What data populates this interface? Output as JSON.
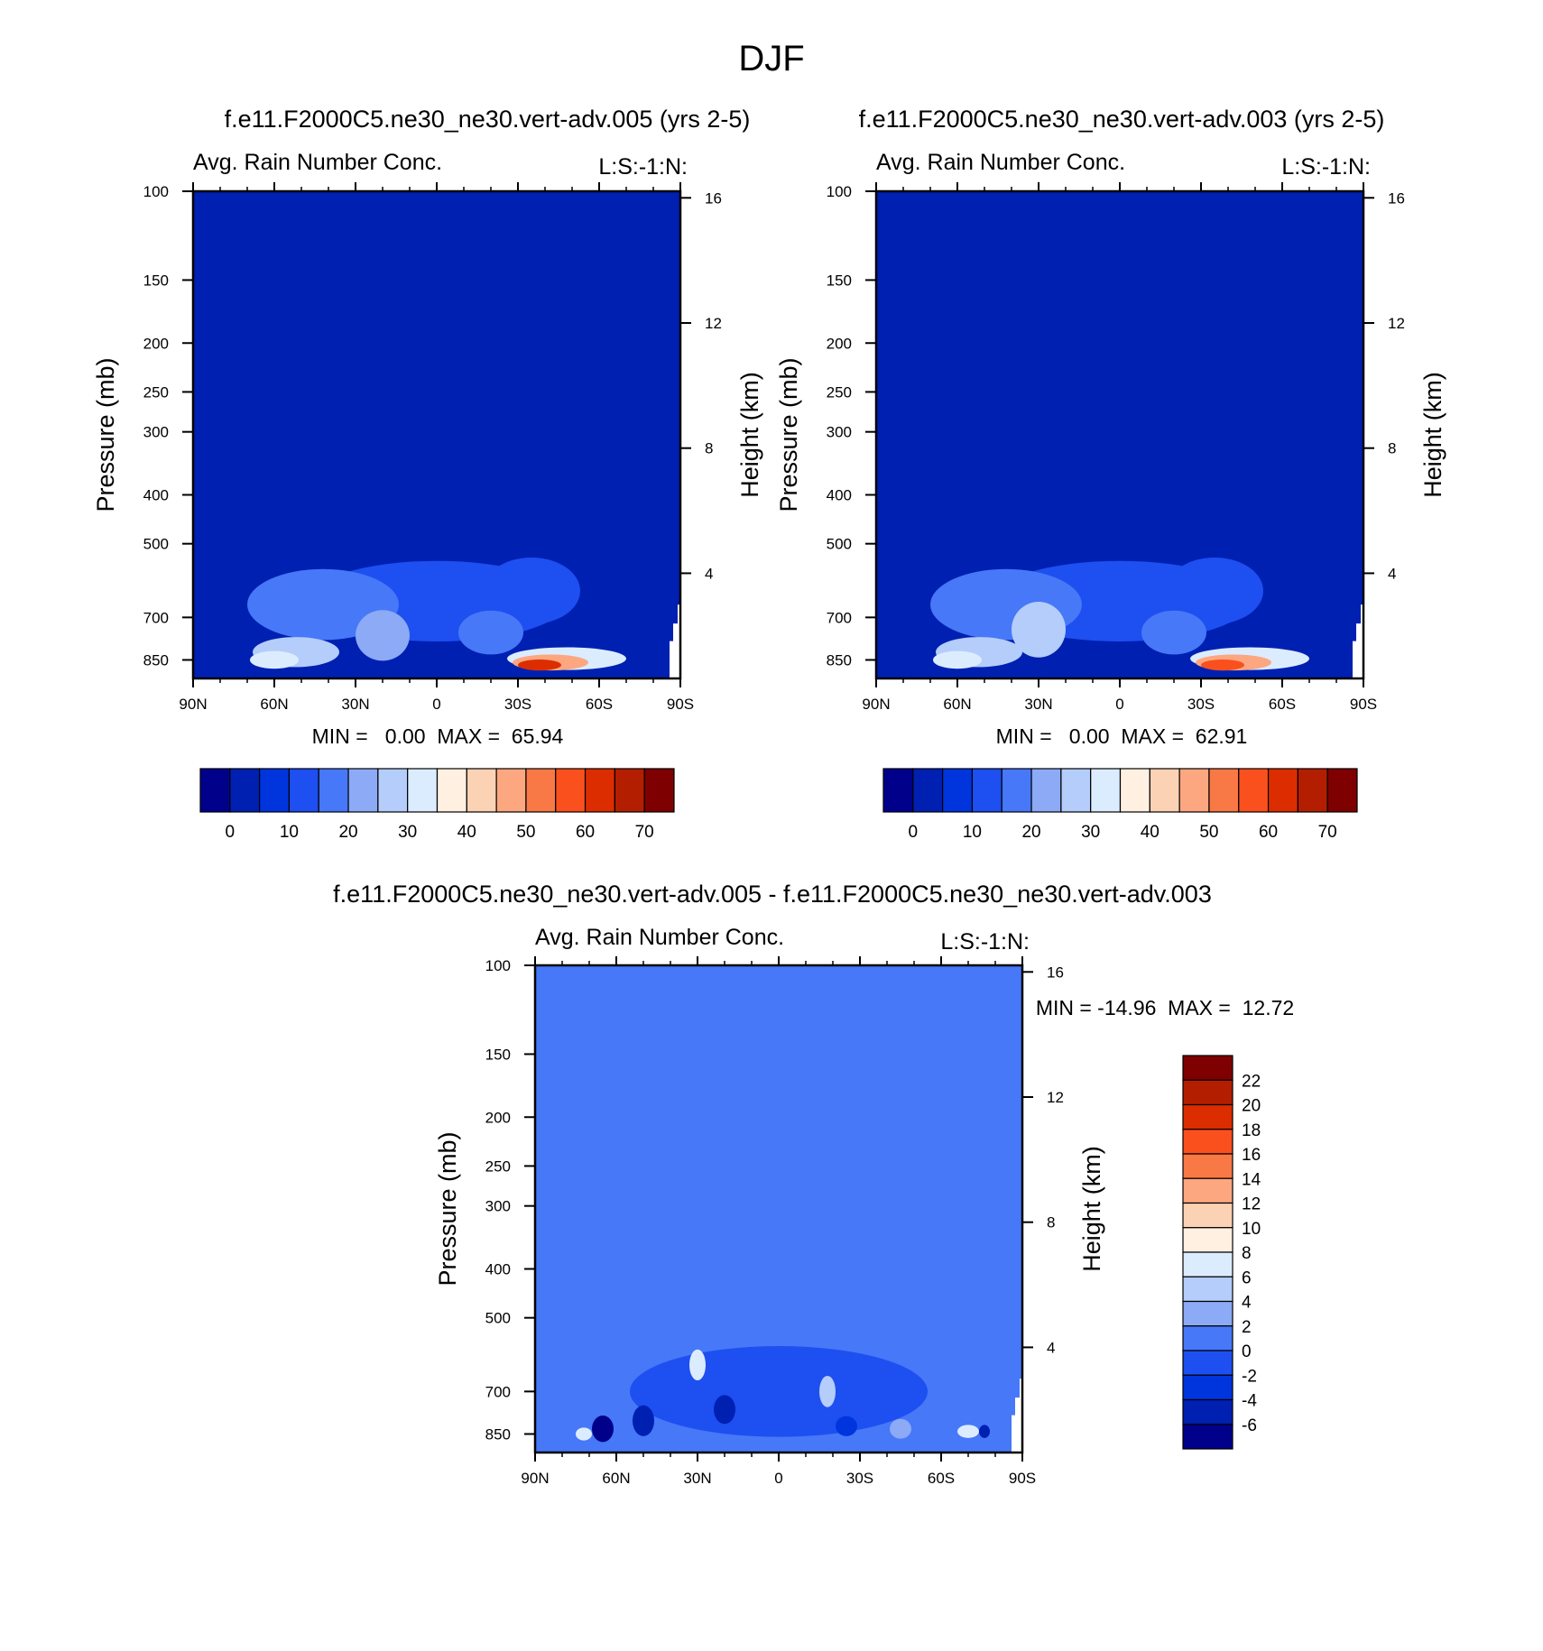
{
  "figure": {
    "title": "DJF"
  },
  "palette": {
    "abs": [
      "#00008b",
      "#0020b2",
      "#0035dd",
      "#1e4ff0",
      "#4678f8",
      "#8caaf5",
      "#b4cdfa",
      "#dcecff",
      "#fff0e1",
      "#fcd2b4",
      "#fca780",
      "#f87846",
      "#fa501e",
      "#dc2d00",
      "#b41e00",
      "#7f0000"
    ],
    "diff": [
      "#00008b",
      "#0020b2",
      "#0035dd",
      "#1e4ff0",
      "#4678f8",
      "#8caaf5",
      "#b4cdfa",
      "#dcecff",
      "#fff0e1",
      "#fcd2b4",
      "#fca780",
      "#f87846",
      "#fa501e",
      "#dc2d00",
      "#b41e00",
      "#7f0000"
    ]
  },
  "chart_data": [
    {
      "type": "heatmap",
      "panel_title": "f.e11.F2000C5.ne30_ne30.vert-adv.005 (yrs 2-5)",
      "left_string": "Avg. Rain Number Conc.",
      "right_string": "L:S:-1:N:",
      "ylabel": "Pressure (mb)",
      "ylabel_right": "Height (km)",
      "x_ticks": [
        "90N",
        "60N",
        "30N",
        "0",
        "30S",
        "60S",
        "90S"
      ],
      "y_ticks": [
        "100",
        "150",
        "200",
        "250",
        "300",
        "400",
        "500",
        "700",
        "850"
      ],
      "y_ticks_right": [
        "16",
        "12",
        "8",
        "4"
      ],
      "min_max": "MIN =   0.00  MAX =  65.94",
      "colorbar": {
        "orientation": "horizontal",
        "labels": [
          "0",
          "10",
          "20",
          "30",
          "40",
          "50",
          "60",
          "70"
        ]
      },
      "field": {
        "background": 1,
        "features": [
          {
            "lat": 0,
            "p": 650,
            "dlat": 48,
            "dp": 190,
            "level": 3
          },
          {
            "lat": -35,
            "p": 620,
            "dlat": 18,
            "dp": 150,
            "level": 3
          },
          {
            "lat": 42,
            "p": 660,
            "dlat": 28,
            "dp": 170,
            "level": 4
          },
          {
            "lat": 52,
            "p": 820,
            "dlat": 16,
            "dp": 90,
            "level": 6
          },
          {
            "lat": 60,
            "p": 850,
            "dlat": 9,
            "dp": 55,
            "level": 7
          },
          {
            "lat": 20,
            "p": 760,
            "dlat": 10,
            "dp": 140,
            "level": 5
          },
          {
            "lat": -20,
            "p": 750,
            "dlat": 12,
            "dp": 120,
            "level": 4
          },
          {
            "lat": -48,
            "p": 845,
            "dlat": 22,
            "dp": 70,
            "level": 7
          },
          {
            "lat": -42,
            "p": 860,
            "dlat": 14,
            "dp": 50,
            "level": 10
          },
          {
            "lat": -38,
            "p": 870,
            "dlat": 8,
            "dp": 35,
            "level": 13
          }
        ]
      }
    },
    {
      "type": "heatmap",
      "panel_title": "f.e11.F2000C5.ne30_ne30.vert-adv.003 (yrs 2-5)",
      "left_string": "Avg. Rain Number Conc.",
      "right_string": "L:S:-1:N:",
      "ylabel": "Pressure (mb)",
      "ylabel_right": "Height (km)",
      "x_ticks": [
        "90N",
        "60N",
        "30N",
        "0",
        "30S",
        "60S",
        "90S"
      ],
      "y_ticks": [
        "100",
        "150",
        "200",
        "250",
        "300",
        "400",
        "500",
        "700",
        "850"
      ],
      "y_ticks_right": [
        "16",
        "12",
        "8",
        "4"
      ],
      "min_max": "MIN =   0.00  MAX =  62.91",
      "colorbar": {
        "orientation": "horizontal",
        "labels": [
          "0",
          "10",
          "20",
          "30",
          "40",
          "50",
          "60",
          "70"
        ]
      },
      "field": {
        "background": 1,
        "features": [
          {
            "lat": 0,
            "p": 650,
            "dlat": 48,
            "dp": 190,
            "level": 3
          },
          {
            "lat": -35,
            "p": 620,
            "dlat": 18,
            "dp": 150,
            "level": 3
          },
          {
            "lat": 42,
            "p": 660,
            "dlat": 28,
            "dp": 170,
            "level": 4
          },
          {
            "lat": 52,
            "p": 820,
            "dlat": 16,
            "dp": 90,
            "level": 6
          },
          {
            "lat": 60,
            "p": 850,
            "dlat": 9,
            "dp": 55,
            "level": 7
          },
          {
            "lat": 30,
            "p": 740,
            "dlat": 10,
            "dp": 150,
            "level": 6
          },
          {
            "lat": -20,
            "p": 750,
            "dlat": 12,
            "dp": 120,
            "level": 4
          },
          {
            "lat": -48,
            "p": 845,
            "dlat": 22,
            "dp": 70,
            "level": 7
          },
          {
            "lat": -42,
            "p": 860,
            "dlat": 14,
            "dp": 50,
            "level": 10
          },
          {
            "lat": -38,
            "p": 870,
            "dlat": 8,
            "dp": 35,
            "level": 12
          }
        ]
      }
    },
    {
      "type": "heatmap",
      "panel_title": "f.e11.F2000C5.ne30_ne30.vert-adv.005 - f.e11.F2000C5.ne30_ne30.vert-adv.003",
      "left_string": "Avg. Rain Number Conc.",
      "right_string": "L:S:-1:N:",
      "ylabel": "Pressure (mb)",
      "ylabel_right": "Height (km)",
      "x_ticks": [
        "90N",
        "60N",
        "30N",
        "0",
        "30S",
        "60S",
        "90S"
      ],
      "y_ticks": [
        "100",
        "150",
        "200",
        "250",
        "300",
        "400",
        "500",
        "700",
        "850"
      ],
      "y_ticks_right": [
        "16",
        "12",
        "8",
        "4"
      ],
      "min_max": "MIN = -14.96  MAX =  12.72",
      "colorbar": {
        "orientation": "vertical",
        "labels": [
          "22",
          "20",
          "18",
          "16",
          "14",
          "12",
          "10",
          "8",
          "6",
          "4",
          "2",
          "0",
          "-2",
          "-4",
          "-6"
        ]
      },
      "field": {
        "background": 4,
        "features": [
          {
            "lat": 0,
            "p": 700,
            "dlat": 55,
            "dp": 230,
            "level": 3
          },
          {
            "lat": 65,
            "p": 830,
            "dlat": 4,
            "dp": 80,
            "level": 0
          },
          {
            "lat": 72,
            "p": 850,
            "dlat": 3,
            "dp": 40,
            "level": 7
          },
          {
            "lat": 50,
            "p": 800,
            "dlat": 4,
            "dp": 90,
            "level": 1
          },
          {
            "lat": 30,
            "p": 620,
            "dlat": 3,
            "dp": 70,
            "level": 7
          },
          {
            "lat": 20,
            "p": 760,
            "dlat": 4,
            "dp": 80,
            "level": 1
          },
          {
            "lat": -18,
            "p": 700,
            "dlat": 3,
            "dp": 80,
            "level": 6
          },
          {
            "lat": -25,
            "p": 820,
            "dlat": 4,
            "dp": 60,
            "level": 2
          },
          {
            "lat": -45,
            "p": 830,
            "dlat": 4,
            "dp": 60,
            "level": 5
          },
          {
            "lat": -70,
            "p": 840,
            "dlat": 4,
            "dp": 40,
            "level": 7
          },
          {
            "lat": -76,
            "p": 840,
            "dlat": 2,
            "dp": 40,
            "level": 1
          }
        ]
      }
    }
  ]
}
